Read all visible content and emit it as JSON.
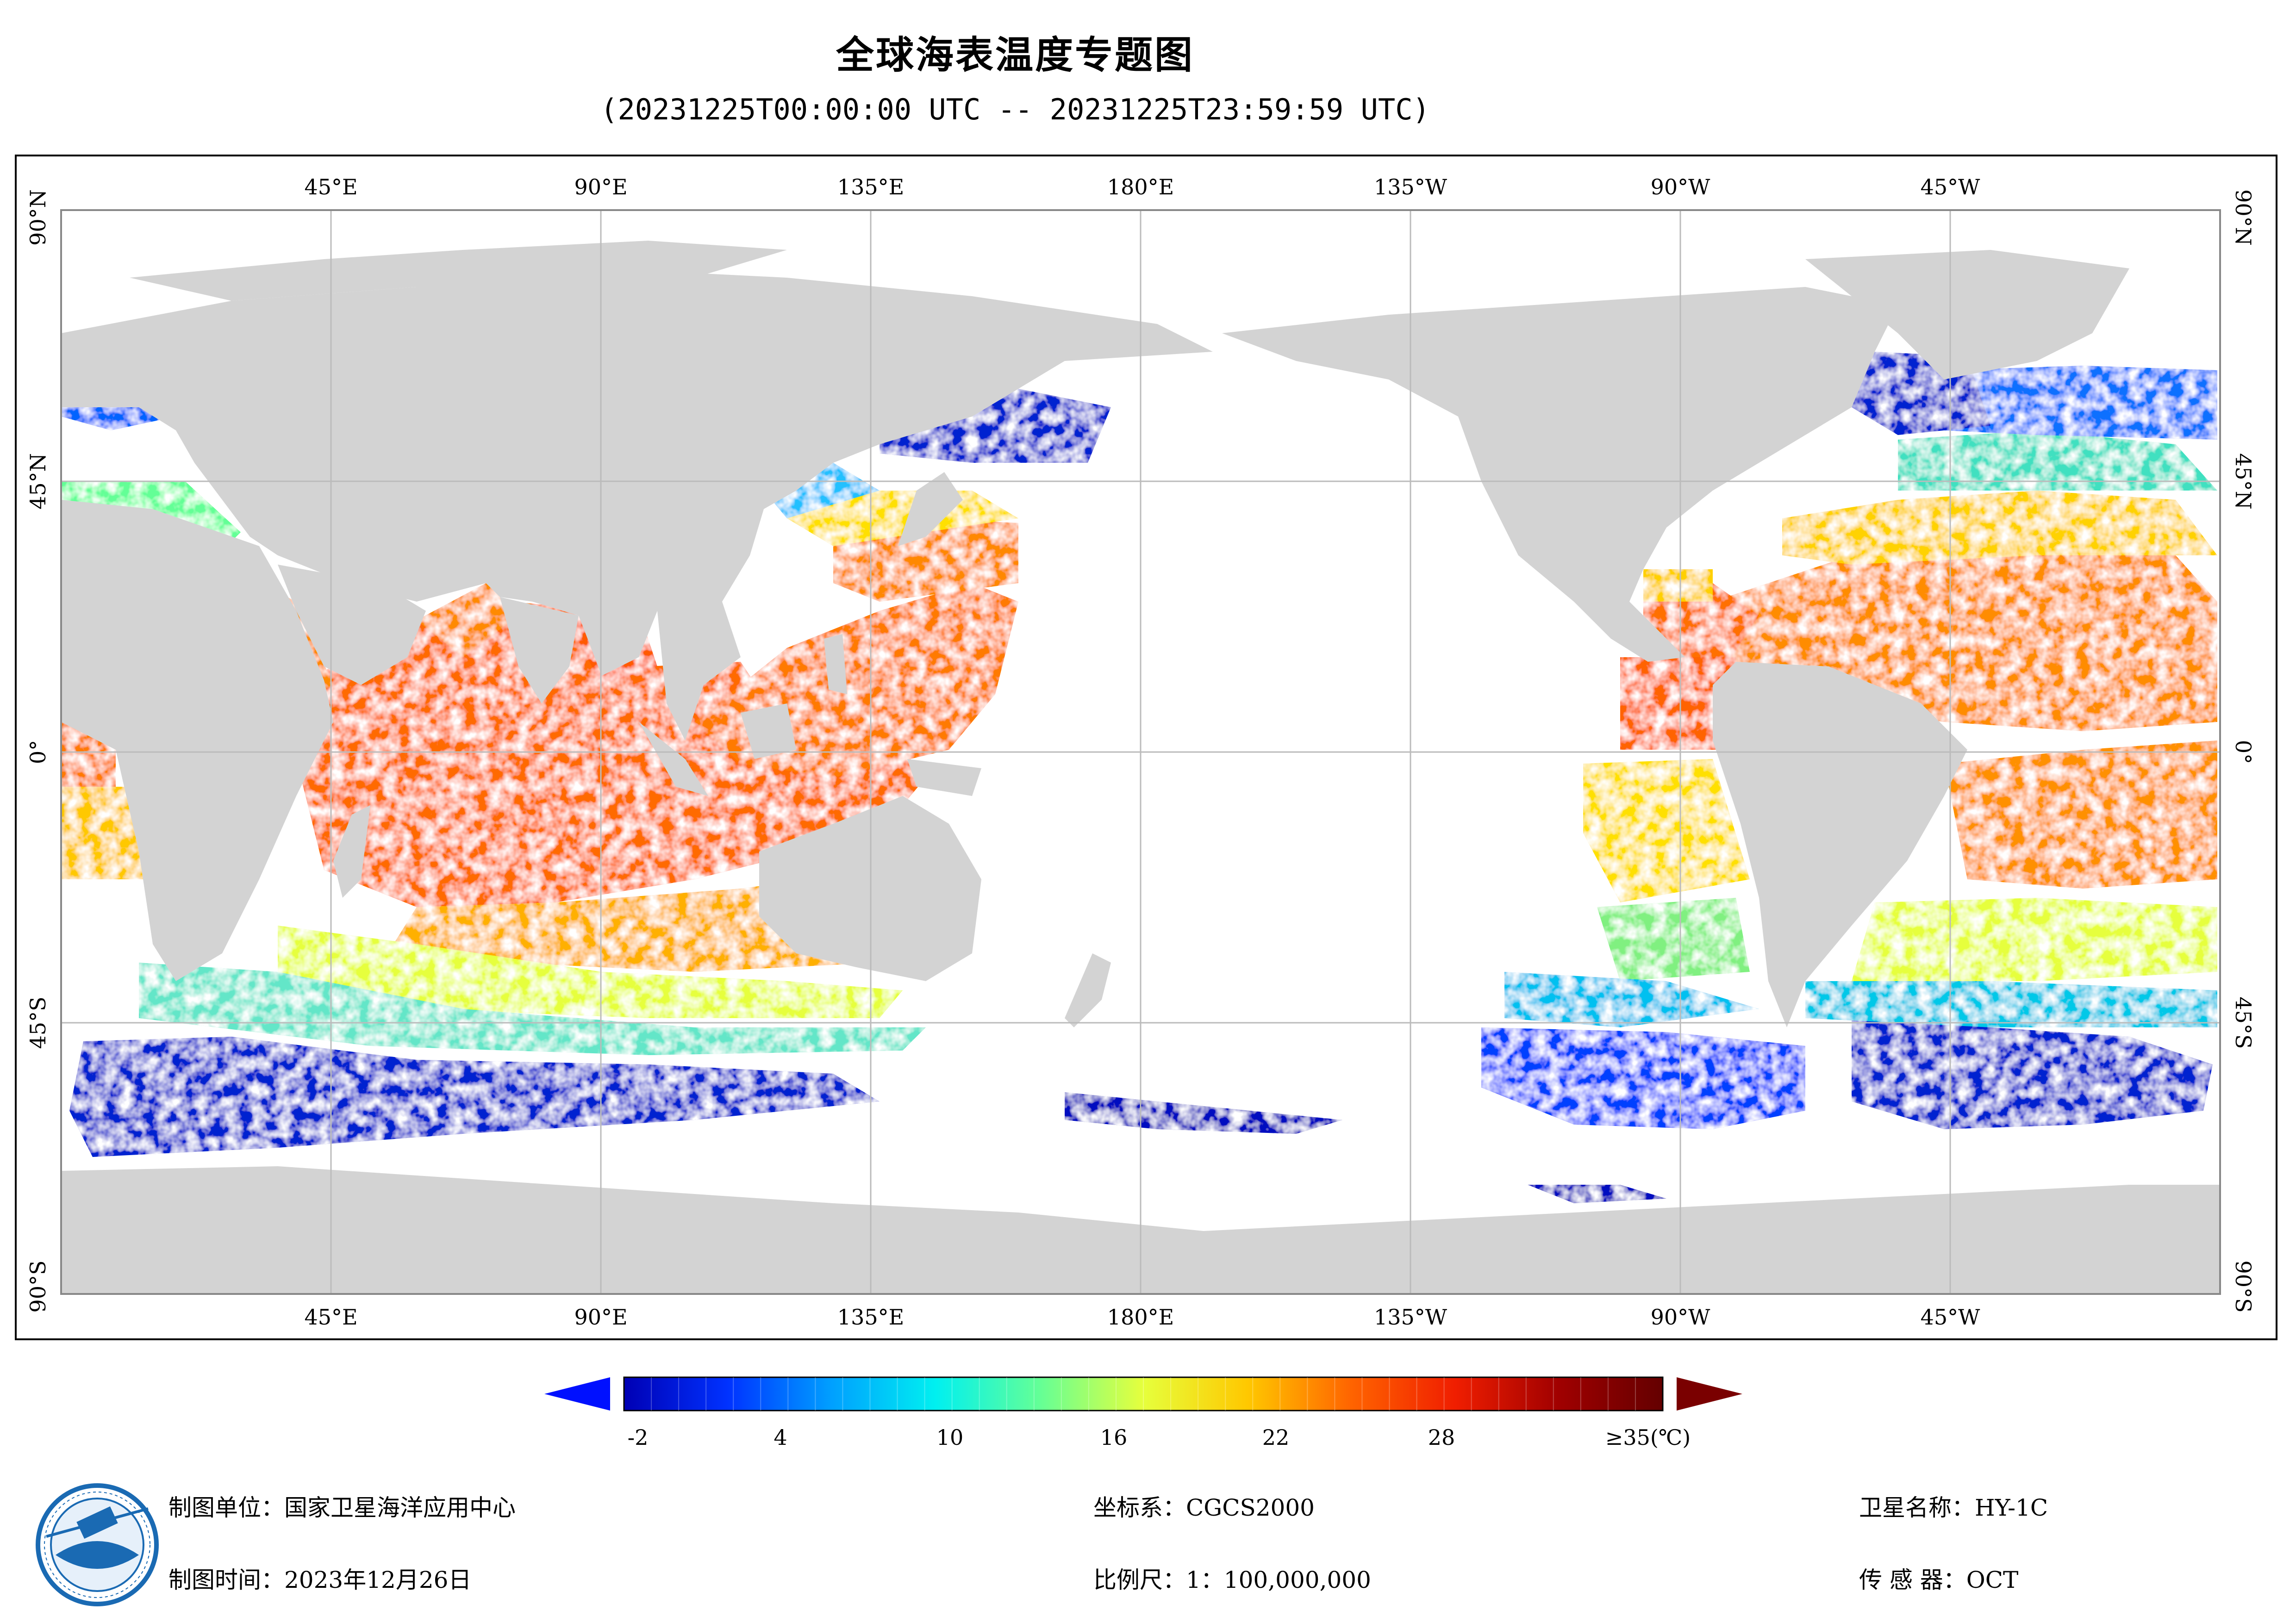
{
  "title": "全球海表温度专题图",
  "subtitle": "(20231225T00:00:00 UTC -- 20231225T23:59:59 UTC)",
  "map": {
    "projection": "equirectangular",
    "central_meridian": "180°",
    "land_color": "#d3d3d3",
    "ocean_nodata_color": "#ffffff",
    "grid_color": "#bbbbbb",
    "lon_labels": [
      "45°E",
      "90°E",
      "135°E",
      "180°E",
      "135°W",
      "90°W",
      "45°W"
    ],
    "lat_labels": [
      "90°N",
      "45°N",
      "0°",
      "45°S",
      "90°S"
    ]
  },
  "colorbar": {
    "tick_labels": [
      "-2",
      "4",
      "10",
      "16",
      "22",
      "28",
      "≥35(℃)"
    ],
    "range": [
      -3,
      35
    ],
    "unit": "℃",
    "colors": [
      "#0000b4",
      "#0032ff",
      "#00a0ff",
      "#00f0f0",
      "#64ff96",
      "#e6ff3c",
      "#ffc800",
      "#ff6400",
      "#f01e00",
      "#a00000",
      "#640000"
    ]
  },
  "footer": {
    "org": "制图单位：国家卫星海洋应用中心",
    "date": "制图时间：2023年12月26日",
    "crs": "坐标系：CGCS2000",
    "scale": "比例尺：1：100,000,000",
    "satellite": "卫星名称：HY-1C",
    "sensor": "传 感 器：OCT"
  }
}
